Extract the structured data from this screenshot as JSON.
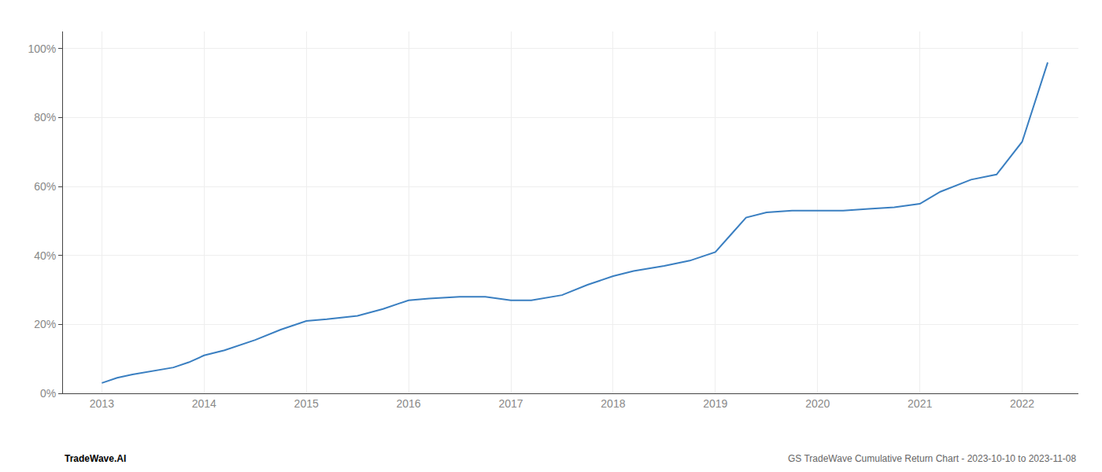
{
  "chart_data": {
    "type": "line",
    "x": [
      2013.0,
      2013.15,
      2013.3,
      2013.5,
      2013.7,
      2013.85,
      2014.0,
      2014.2,
      2014.5,
      2014.75,
      2015.0,
      2015.2,
      2015.5,
      2015.75,
      2016.0,
      2016.2,
      2016.5,
      2016.75,
      2017.0,
      2017.2,
      2017.5,
      2017.75,
      2018.0,
      2018.2,
      2018.5,
      2018.75,
      2019.0,
      2019.15,
      2019.3,
      2019.5,
      2019.75,
      2020.0,
      2020.25,
      2020.5,
      2020.75,
      2021.0,
      2021.2,
      2021.5,
      2021.75,
      2022.0,
      2022.25
    ],
    "values": [
      0.03,
      0.045,
      0.055,
      0.065,
      0.075,
      0.09,
      0.11,
      0.125,
      0.155,
      0.185,
      0.21,
      0.215,
      0.225,
      0.245,
      0.27,
      0.275,
      0.28,
      0.28,
      0.27,
      0.27,
      0.285,
      0.315,
      0.34,
      0.355,
      0.37,
      0.385,
      0.41,
      0.46,
      0.51,
      0.525,
      0.53,
      0.53,
      0.53,
      0.535,
      0.54,
      0.55,
      0.585,
      0.62,
      0.635,
      0.73,
      0.96
    ],
    "color": "#3a7fc1",
    "xlim": [
      2012.62,
      2022.55
    ],
    "ylim": [
      0.0,
      1.05
    ],
    "xticks": [
      2013,
      2014,
      2015,
      2016,
      2017,
      2018,
      2019,
      2020,
      2021,
      2022
    ],
    "yticks": [
      {
        "value": 0.0,
        "label": "0%"
      },
      {
        "value": 0.2,
        "label": "20%"
      },
      {
        "value": 0.4,
        "label": "40%"
      },
      {
        "value": 0.6,
        "label": "60%"
      },
      {
        "value": 0.8,
        "label": "80%"
      },
      {
        "value": 1.0,
        "label": "100%"
      }
    ],
    "grid": true,
    "annotations": [
      "TradeWave.AI",
      "GS TradeWave Cumulative Return Chart - 2023-10-10 to 2023-11-08"
    ]
  }
}
